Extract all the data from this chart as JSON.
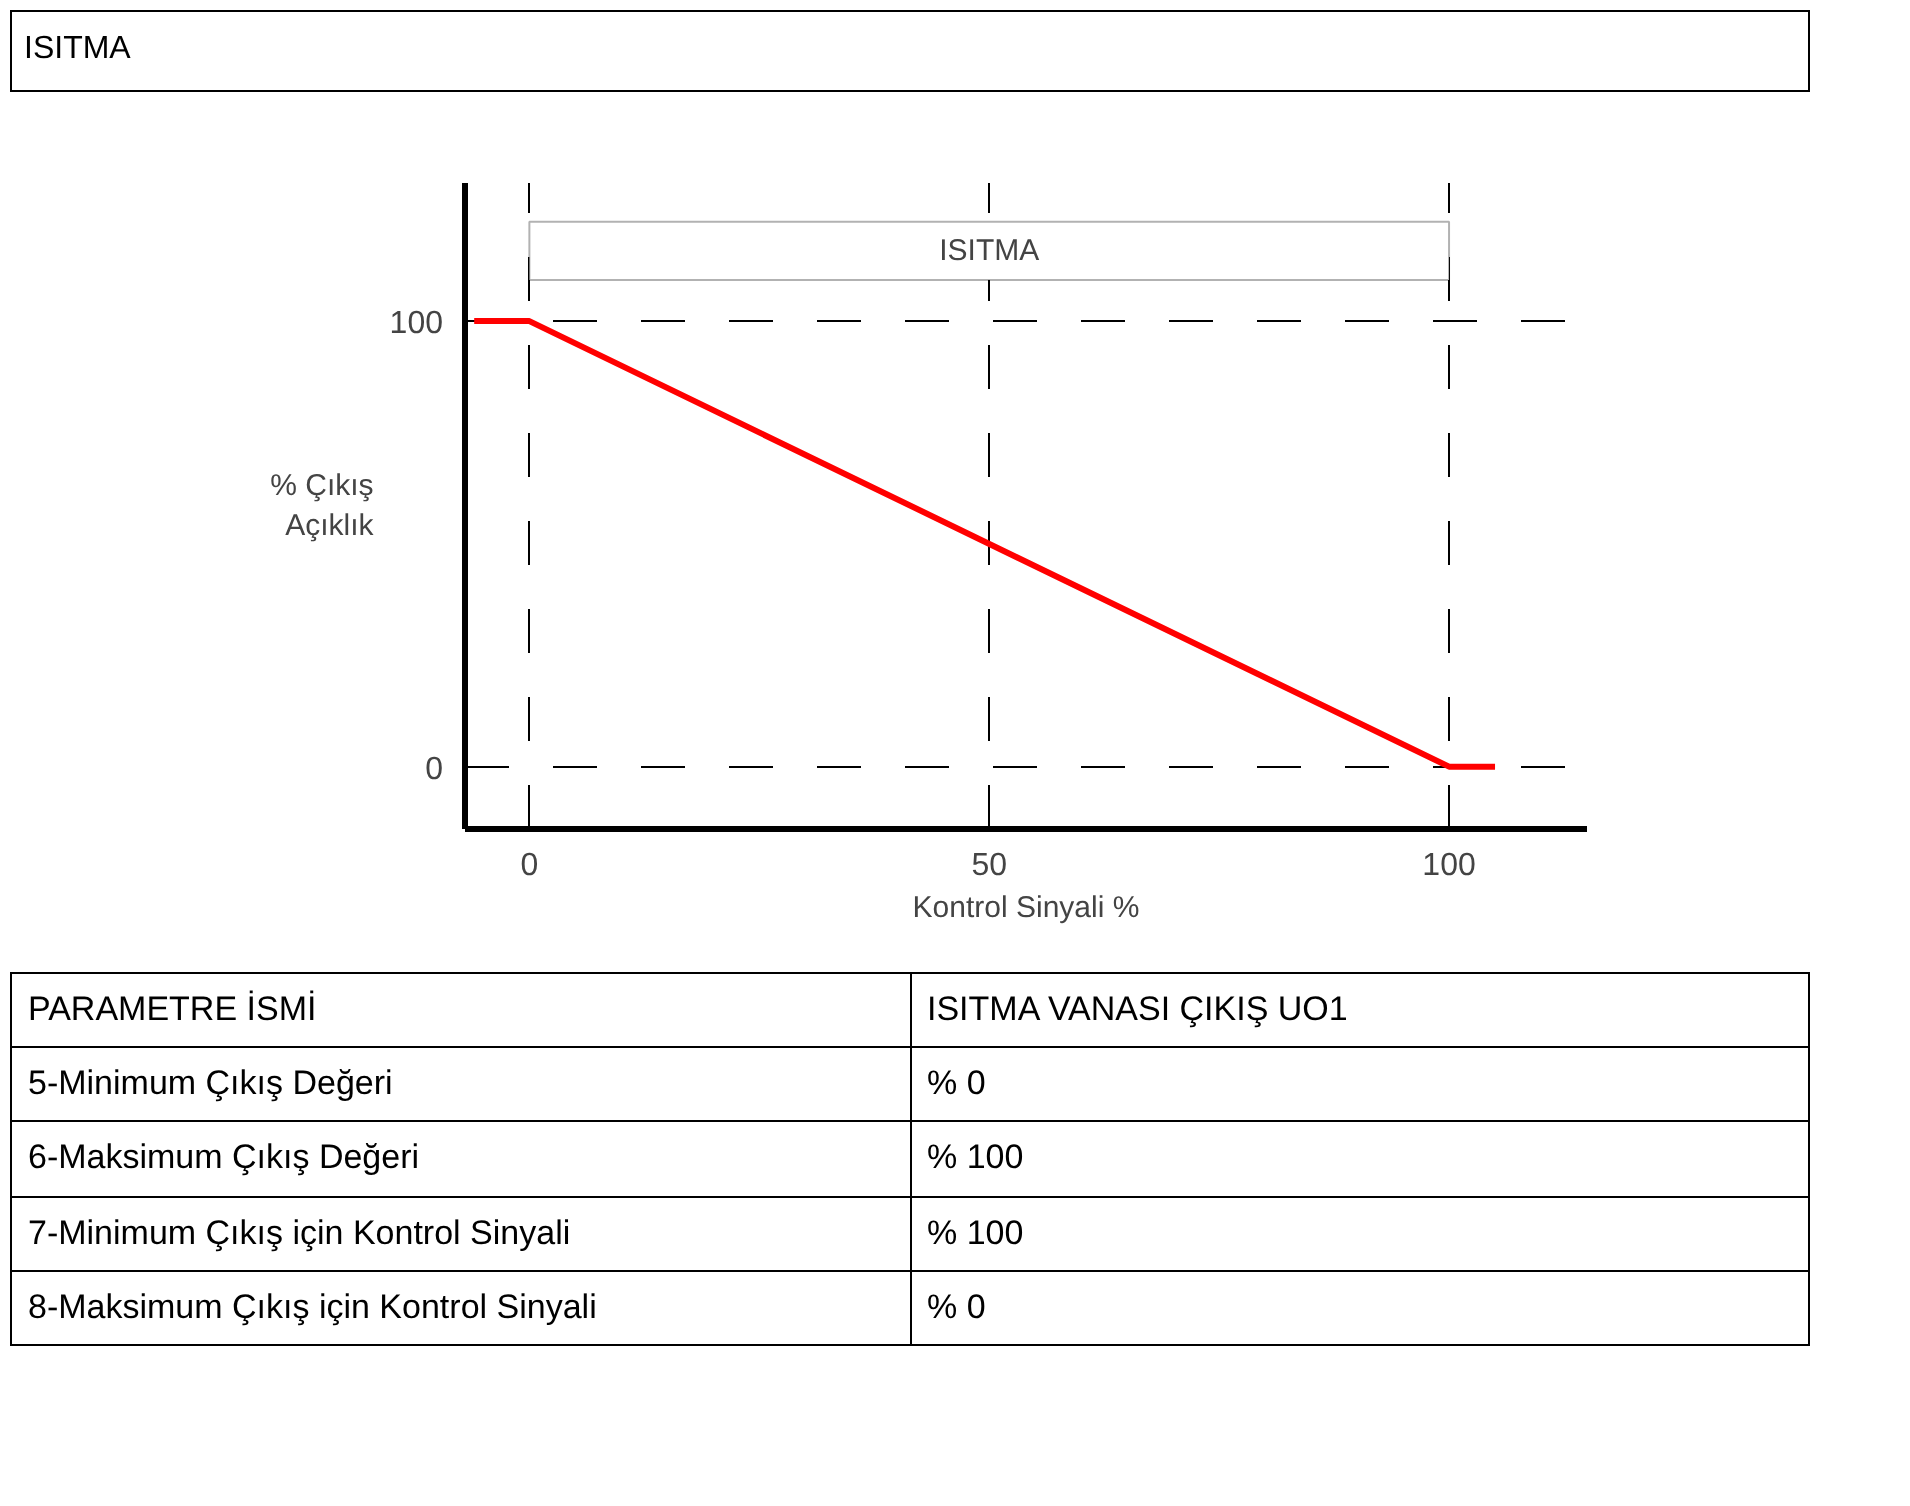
{
  "chart_data": {
    "type": "line",
    "title": "ISITMA",
    "xlabel": "Kontrol Sinyali %",
    "ylabel": "% Çıkış\nAçıklık",
    "x": [
      -6,
      0,
      100,
      105
    ],
    "series": [
      {
        "color": "#ff0000",
        "values": [
          100,
          100,
          0,
          0
        ]
      }
    ],
    "xlim": [
      -7,
      115
    ],
    "ylim": [
      -14,
      131
    ],
    "xticks": [
      0,
      50,
      100
    ],
    "yticks": [
      0,
      100
    ],
    "grid": true,
    "line_style": "solid",
    "marker": "none",
    "bands": [
      {
        "axis": "x",
        "from": 0,
        "to": 100,
        "label": "ISITMA"
      }
    ],
    "annotations": [
      "PARAMETRE İSMİ",
      "ISITMA VANASI ÇIKIŞ UO1",
      "5-Minimum Çıkış Değeri",
      "% 0",
      "6-Maksimum Çıkış Değeri",
      "% 100",
      "7-Minimum Çıkış için Kontrol Sinyali",
      "% 100",
      "8-Maksimum Çıkış için Kontrol Sinyali",
      "% 0"
    ]
  }
}
